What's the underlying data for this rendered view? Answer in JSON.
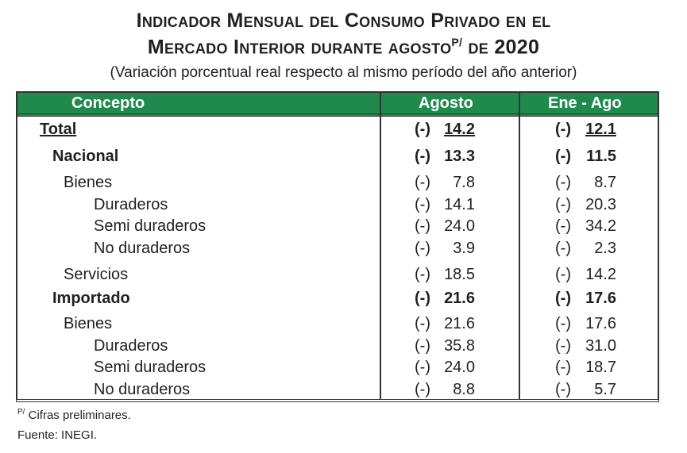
{
  "title": {
    "line1": "Indicador Mensual del Consumo Privado en el",
    "line2_pre": "Mercado Interior durante agosto",
    "line2_sup": "P/",
    "line2_post": " de 2020",
    "subtitle": "(Variación porcentual real respecto al mismo período del año anterior)"
  },
  "header_color": "#1f8a4c",
  "columns": [
    "Concepto",
    "Agosto",
    "Ene - Ago"
  ],
  "rows": [
    {
      "label": "Total",
      "sign_a": "(-)",
      "agosto": "14.2",
      "sign_b": "(-)",
      "ene_ago": "12.1"
    },
    {
      "label": "Nacional",
      "sign_a": "(-)",
      "agosto": "13.3",
      "sign_b": "(-)",
      "ene_ago": "11.5"
    },
    {
      "label": "Bienes",
      "sign_a": "(-)",
      "agosto": "7.8",
      "sign_b": "(-)",
      "ene_ago": "8.7"
    },
    {
      "label": "Duraderos",
      "sign_a": "(-)",
      "agosto": "14.1",
      "sign_b": "(-)",
      "ene_ago": "20.3"
    },
    {
      "label": "Semi duraderos",
      "sign_a": "(-)",
      "agosto": "24.0",
      "sign_b": "(-)",
      "ene_ago": "34.2"
    },
    {
      "label": "No duraderos",
      "sign_a": "(-)",
      "agosto": "3.9",
      "sign_b": "(-)",
      "ene_ago": "2.3"
    },
    {
      "label": "Servicios",
      "sign_a": "(-)",
      "agosto": "18.5",
      "sign_b": "(-)",
      "ene_ago": "14.2"
    },
    {
      "label": "Importado",
      "sign_a": "(-)",
      "agosto": "21.6",
      "sign_b": "(-)",
      "ene_ago": "17.6"
    },
    {
      "label": "Bienes",
      "sign_a": "(-)",
      "agosto": "21.6",
      "sign_b": "(-)",
      "ene_ago": "17.6"
    },
    {
      "label": "Duraderos",
      "sign_a": "(-)",
      "agosto": "35.8",
      "sign_b": "(-)",
      "ene_ago": "31.0"
    },
    {
      "label": "Semi duraderos",
      "sign_a": "(-)",
      "agosto": "24.0",
      "sign_b": "(-)",
      "ene_ago": "18.7"
    },
    {
      "label": "No duraderos",
      "sign_a": "(-)",
      "agosto": "8.8",
      "sign_b": "(-)",
      "ene_ago": "5.7"
    }
  ],
  "footnotes": {
    "sup": "P/",
    "note": " Cifras preliminares.",
    "source": "Fuente: INEGI."
  }
}
